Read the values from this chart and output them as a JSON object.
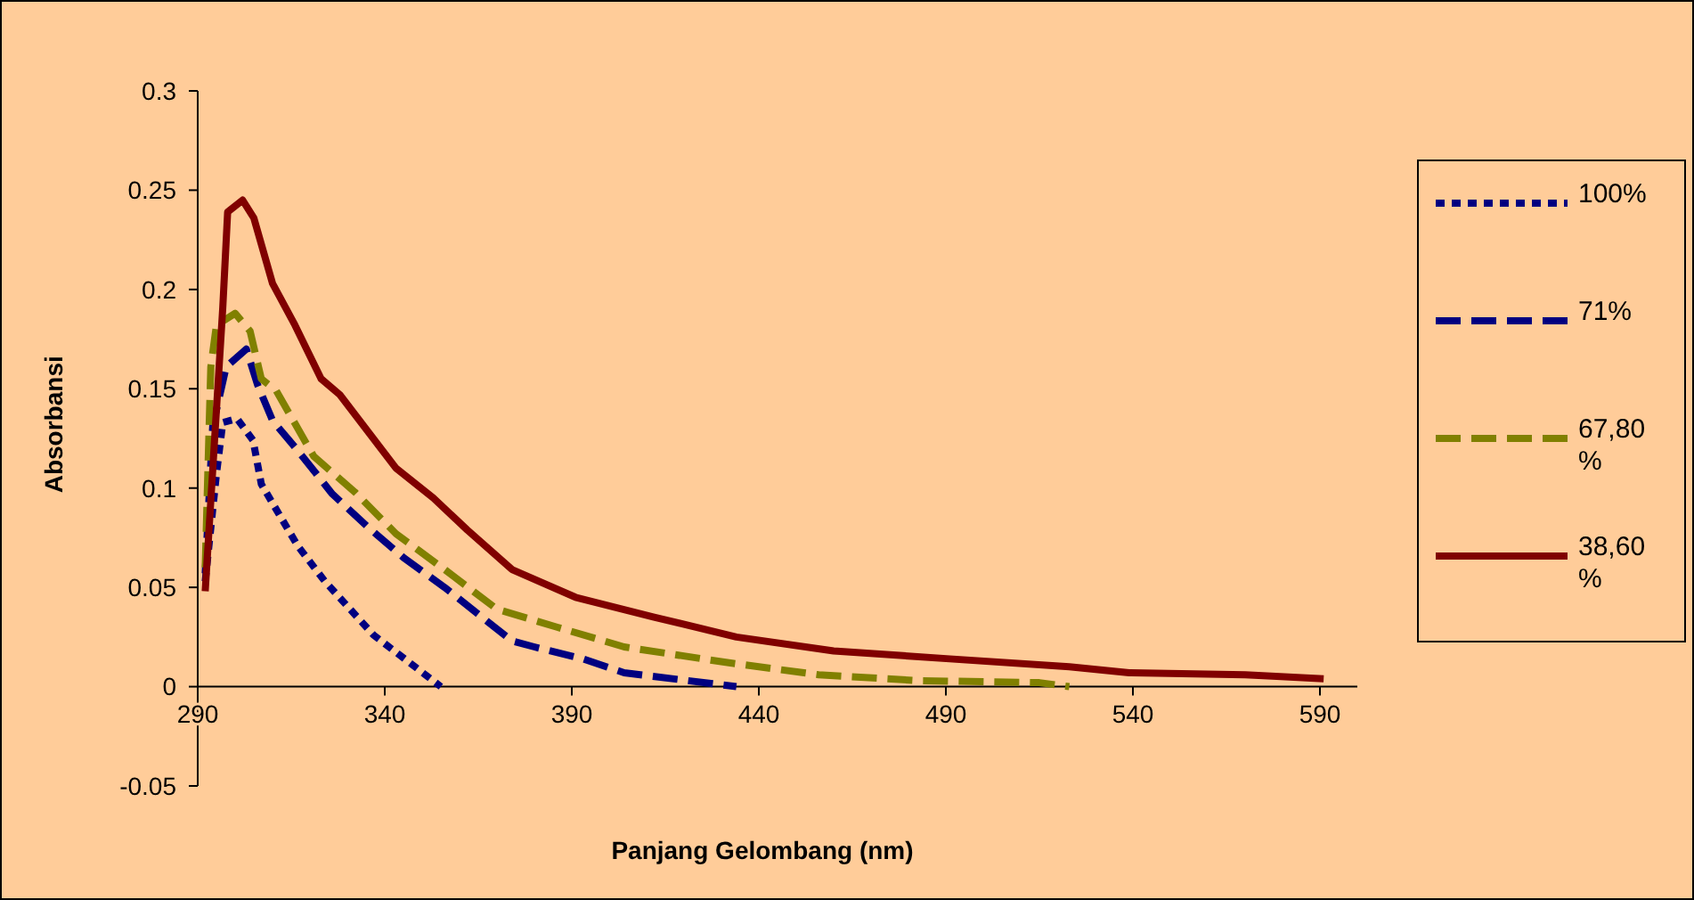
{
  "chart_data": {
    "type": "line",
    "xlabel": "Panjang Gelombang (nm)",
    "ylabel": "Absorbansi",
    "xlim": [
      290,
      600
    ],
    "ylim": [
      -0.05,
      0.3
    ],
    "xticks": [
      290,
      340,
      390,
      440,
      490,
      540,
      590
    ],
    "yticks": [
      -0.05,
      0,
      0.05,
      0.1,
      0.15,
      0.2,
      0.25,
      0.3
    ],
    "legend": "right",
    "grid": false,
    "series": [
      {
        "name": "100%",
        "color": "#000080",
        "line_style": "dotted",
        "x": [
          292,
          295,
          296.7,
          300.5,
          304.8,
          307,
          316.7,
          324,
          337,
          355
        ],
        "values": [
          0.053,
          0.107,
          0.133,
          0.135,
          0.124,
          0.102,
          0.071,
          0.053,
          0.026,
          0
        ]
      },
      {
        "name": "71%",
        "color": "#000080",
        "line_style": "dashed",
        "x": [
          292,
          294,
          297.6,
          303,
          306,
          310,
          316.7,
          326,
          335.7,
          345,
          356,
          374,
          380,
          393,
          404,
          434
        ],
        "values": [
          0.057,
          0.131,
          0.161,
          0.17,
          0.152,
          0.134,
          0.119,
          0.097,
          0.08,
          0.065,
          0.05,
          0.023,
          0.02,
          0.014,
          0.007,
          0
        ]
      },
      {
        "name": "67,80%",
        "color": "#808000",
        "line_style": "dashed",
        "x": [
          292,
          293.5,
          295,
          300,
          304,
          307,
          311,
          321,
          332,
          343,
          356,
          370,
          386,
          404,
          432,
          456,
          483,
          515,
          523
        ],
        "values": [
          0.06,
          0.161,
          0.182,
          0.188,
          0.179,
          0.155,
          0.149,
          0.116,
          0.098,
          0.077,
          0.059,
          0.039,
          0.03,
          0.02,
          0.012,
          0.006,
          0.003,
          0.002,
          0
        ]
      },
      {
        "name": "38,60%",
        "color": "#800000",
        "line_style": "solid",
        "x": [
          292,
          296.7,
          298,
          302,
          305,
          310,
          316,
          323,
          328,
          343,
          353,
          362,
          374,
          391,
          412,
          434,
          460,
          491,
          523,
          539,
          570,
          591
        ],
        "values": [
          0.048,
          0.191,
          0.239,
          0.245,
          0.236,
          0.203,
          0.182,
          0.155,
          0.147,
          0.11,
          0.095,
          0.079,
          0.059,
          0.045,
          0.035,
          0.025,
          0.018,
          0.014,
          0.01,
          0.007,
          0.006,
          0.004
        ]
      }
    ]
  }
}
